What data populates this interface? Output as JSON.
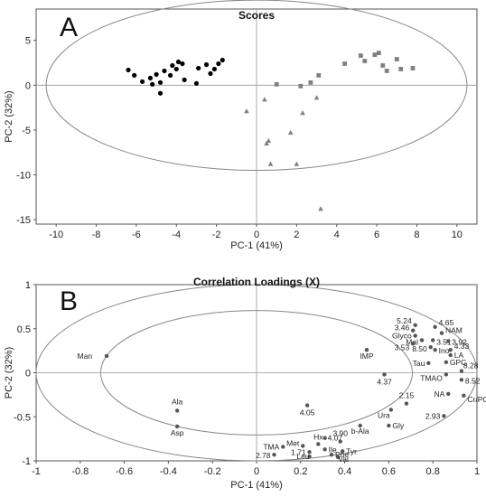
{
  "chart_data": [
    {
      "panel": "A",
      "type": "scatter",
      "title": "Scores",
      "xlabel": "PC-1 (41%)",
      "ylabel": "PC-2 (32%)",
      "xlim": [
        -11,
        11
      ],
      "ylim": [
        -15.5,
        8.5
      ],
      "xticks": [
        -10,
        -8,
        -6,
        -4,
        -2,
        0,
        2,
        4,
        6,
        8,
        10
      ],
      "yticks": [
        5,
        0,
        -5,
        -10,
        -15
      ],
      "reference_lines": {
        "x": 0,
        "y": 0
      },
      "ellipse": {
        "cx": 0,
        "cy": 0,
        "rx": 10.5,
        "ry": 9.5
      },
      "series": [
        {
          "marker": "circle",
          "color": "#000000",
          "points": [
            [
              -6.4,
              1.7
            ],
            [
              -6.1,
              1.1
            ],
            [
              -5.7,
              0.4
            ],
            [
              -5.2,
              0.1
            ],
            [
              -5.3,
              0.8
            ],
            [
              -5.0,
              1.2
            ],
            [
              -4.8,
              0.3
            ],
            [
              -4.8,
              -0.9
            ],
            [
              -4.6,
              1.6
            ],
            [
              -4.3,
              1.1
            ],
            [
              -4.2,
              2.2
            ],
            [
              -4.0,
              1.8
            ],
            [
              -3.9,
              2.6
            ],
            [
              -3.7,
              2.4
            ],
            [
              -3.6,
              0.6
            ],
            [
              -3.0,
              0.2
            ],
            [
              -2.9,
              1.9
            ],
            [
              -2.5,
              2.3
            ],
            [
              -2.3,
              1.3
            ],
            [
              -2.1,
              1.8
            ],
            [
              -1.9,
              2.4
            ],
            [
              -1.7,
              2.8
            ]
          ]
        },
        {
          "marker": "square",
          "color": "#808080",
          "points": [
            [
              1.0,
              0.1
            ],
            [
              2.2,
              -0.1
            ],
            [
              2.7,
              0.3
            ],
            [
              3.1,
              1.1
            ],
            [
              4.4,
              2.4
            ],
            [
              5.2,
              3.3
            ],
            [
              5.4,
              2.7
            ],
            [
              5.9,
              3.4
            ],
            [
              6.1,
              3.6
            ],
            [
              6.3,
              2.2
            ],
            [
              6.5,
              1.6
            ],
            [
              7.0,
              2.9
            ],
            [
              7.2,
              1.8
            ],
            [
              7.8,
              1.9
            ]
          ]
        },
        {
          "marker": "triangle",
          "color": "#808080",
          "points": [
            [
              -0.5,
              -2.9
            ],
            [
              0.4,
              -1.6
            ],
            [
              0.5,
              -6.5
            ],
            [
              0.6,
              -6.2
            ],
            [
              0.7,
              -8.8
            ],
            [
              1.7,
              -5.3
            ],
            [
              2.0,
              -8.8
            ],
            [
              2.3,
              -3.1
            ],
            [
              3.0,
              -1.4
            ],
            [
              3.2,
              -13.8
            ]
          ]
        }
      ]
    },
    {
      "panel": "B",
      "type": "scatter",
      "title": "Correlation Loadings (X)",
      "xlabel": "PC-1 (41%)",
      "ylabel": "PC-2 (32%)",
      "xlim": [
        -1,
        1
      ],
      "ylim": [
        -1,
        1
      ],
      "xticks": [
        -1,
        -0.8,
        -0.6,
        -0.4,
        -0.2,
        0,
        0.2,
        0.4,
        0.6,
        0.8,
        1
      ],
      "yticks": [
        1,
        0.5,
        0,
        -0.5,
        -1
      ],
      "reference_lines": {
        "x": 0,
        "y": 0
      },
      "circles": [
        {
          "r": 1.0
        },
        {
          "r": 0.707
        }
      ],
      "points": [
        {
          "label": "Man",
          "x": -0.68,
          "y": 0.19
        },
        {
          "label": "Ala",
          "x": -0.36,
          "y": -0.43
        },
        {
          "label": "Asp",
          "x": -0.36,
          "y": -0.61
        },
        {
          "label": "IMP",
          "x": 0.5,
          "y": 0.26
        },
        {
          "label": "4.37",
          "x": 0.58,
          "y": -0.02
        },
        {
          "label": "4.05",
          "x": 0.23,
          "y": -0.37
        },
        {
          "label": "2.15",
          "x": 0.68,
          "y": -0.35
        },
        {
          "label": "Ura",
          "x": 0.61,
          "y": -0.42
        },
        {
          "label": "Gly",
          "x": 0.6,
          "y": -0.6
        },
        {
          "label": "b-Ala",
          "x": 0.47,
          "y": -0.6
        },
        {
          "label": "4.07",
          "x": 0.31,
          "y": -0.74
        },
        {
          "label": "3.90",
          "x": 0.38,
          "y": -0.78
        },
        {
          "label": "TMA",
          "x": 0.12,
          "y": -0.84
        },
        {
          "label": "Met",
          "x": 0.21,
          "y": -0.83
        },
        {
          "label": "Hx",
          "x": 0.28,
          "y": -0.81
        },
        {
          "label": "Ile",
          "x": 0.31,
          "y": -0.87
        },
        {
          "label": "1.71",
          "x": 0.24,
          "y": -0.9
        },
        {
          "label": "2.78",
          "x": 0.08,
          "y": -0.93
        },
        {
          "label": "Leu",
          "x": 0.24,
          "y": -0.95
        },
        {
          "label": "Phe",
          "x": 0.34,
          "y": -0.93
        },
        {
          "label": "Tyr",
          "x": 0.39,
          "y": -0.89
        },
        {
          "label": "Val",
          "x": 0.37,
          "y": -0.96
        },
        {
          "label": "5.24",
          "x": 0.72,
          "y": 0.54
        },
        {
          "label": "4.65",
          "x": 0.81,
          "y": 0.52
        },
        {
          "label": "3.46",
          "x": 0.71,
          "y": 0.48
        },
        {
          "label": "Glyco",
          "x": 0.72,
          "y": 0.42
        },
        {
          "label": "NAM",
          "x": 0.84,
          "y": 0.45
        },
        {
          "label": "Mal",
          "x": 0.75,
          "y": 0.37
        },
        {
          "label": "3.51",
          "x": 0.8,
          "y": 0.37
        },
        {
          "label": "3.92",
          "x": 0.87,
          "y": 0.36
        },
        {
          "label": "3.53",
          "x": 0.71,
          "y": 0.33
        },
        {
          "label": "8.50",
          "x": 0.79,
          "y": 0.29
        },
        {
          "label": "Ino",
          "x": 0.81,
          "y": 0.26
        },
        {
          "label": "4.33",
          "x": 0.88,
          "y": 0.26
        },
        {
          "label": "LA",
          "x": 0.88,
          "y": 0.2
        },
        {
          "label": "Tau",
          "x": 0.78,
          "y": 0.11
        },
        {
          "label": "GPC",
          "x": 0.86,
          "y": 0.12
        },
        {
          "label": "8.28",
          "x": 0.93,
          "y": 0.02
        },
        {
          "label": "TMAO",
          "x": 0.86,
          "y": -0.02
        },
        {
          "label": "8.52",
          "x": 0.93,
          "y": -0.08
        },
        {
          "label": "NA",
          "x": 0.87,
          "y": -0.24
        },
        {
          "label": "Cr/PCr",
          "x": 0.94,
          "y": -0.26
        },
        {
          "label": "2.93",
          "x": 0.85,
          "y": -0.49
        }
      ]
    }
  ]
}
